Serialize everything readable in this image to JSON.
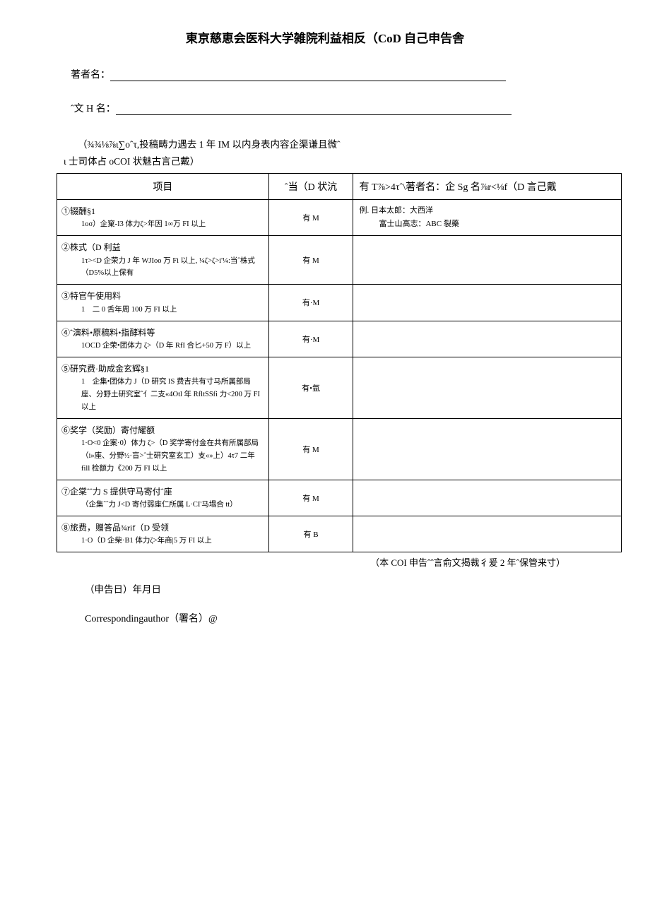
{
  "title": "東京慈恵会医科大学雑院利益相反（CoD 自己申告舎",
  "author_label": "著者名：",
  "paper_label": "ˆ文 H 名：",
  "intro_line1": "（¾¾⅛⅞ι∑oˆτ,投稿畴力遇去 1 年 IM 以内身表内容企渠谦且微ˆ",
  "intro_line2": "ι 士司体占 oCOI 状魅古言己戴）",
  "header_col1": "项目",
  "header_col2": "ˆ当（D 状沆",
  "header_col3": "有 T⅞>4τˆ\\著者名：企 Sg 名⅞r<⅛f（D 言己戴",
  "rows": [
    {
      "head": "①辍酬§1",
      "sub": "1oσ）企窠-I3 体力ζ>年因 1∞万 FI 以上",
      "status": "有 M",
      "detail_head": "例. 日本太郎：大西洋",
      "detail_sub": "富士山高志：ABC 裂藥"
    },
    {
      "head": "②株式（D 利益",
      "sub": "1τ><D 企荣力 J 年 WJIoo 万 Fi 以上, ¼ζ>ζ>i'¼:当ˆ株式（D5%以上保有",
      "status": "有 M",
      "detail_head": "",
      "detail_sub": ""
    },
    {
      "head": "③特官午使用料",
      "sub": "1　二 0 舌年周 100 万 FI 以上",
      "status": "有·M",
      "detail_head": "",
      "detail_sub": ""
    },
    {
      "head": "④ˆ演料•原稿料•指酵料等",
      "sub": "1OCD 企荣•团体力 ζ>（D 年 RfI 合匕+50 万 F）以上",
      "status": "有·M",
      "detail_head": "",
      "detail_sub": ""
    },
    {
      "head": "⑤研究费·助成金玄辉§1",
      "sub": "1　企集•团体力 J（D 研究 IS 费吉共有寸马所属部局座、分野土研究室ˆ亻二支«4Otl 年 RfltSSfi 力<200 万 FI 以上",
      "status": "有•氩",
      "detail_head": "",
      "detail_sub": ""
    },
    {
      "head": "⑥奖学（奖励）寄付耀额",
      "sub": "1·O<0 企案·0）体力 ζ>（D 奖学寄付金在共有所属部局（i»座、分野½·盲>ˆ士研究室玄工）支«»上）4τ7 二年 fill 检额力《200 万 FI 以上",
      "status": "有 M",
      "detail_head": "",
      "detail_sub": ""
    },
    {
      "head": "⑦企棠ˆˆ力 S 提供守马寄付ˆ座",
      "sub": "（企集ˆˆ力 J<D 寄付弱座仁所属 L·CI'马塌合 tt）",
      "status": "有 M",
      "detail_head": "",
      "detail_sub": ""
    },
    {
      "head": "⑧旅费，赠答品¾rif（D 受领",
      "sub": "1·O（D 企柴·B1 体力ζ>年商|5 万 FI 以上",
      "status": "有 B",
      "detail_head": "",
      "detail_sub": ""
    }
  ],
  "footnote": "（本 COI 申告ˆˆ言俞文揭裁彳爰 2 年ˆ保管来寸）",
  "date_line": "（申告日）年月日",
  "sig_line": "Correspondingauthor（署名）@"
}
